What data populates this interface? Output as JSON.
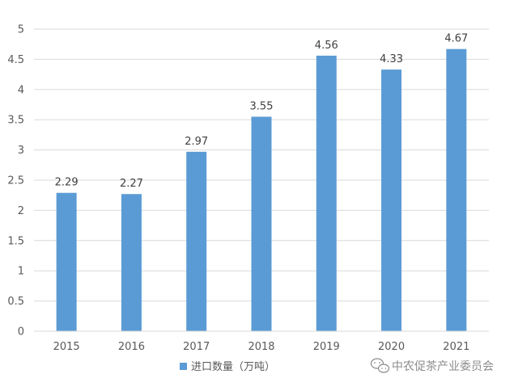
{
  "chart_data": {
    "type": "bar",
    "categories": [
      "2015",
      "2016",
      "2017",
      "2018",
      "2019",
      "2020",
      "2021"
    ],
    "series": [
      {
        "name": "进口数量（万吨）",
        "values": [
          2.29,
          2.27,
          2.97,
          3.55,
          4.56,
          4.33,
          4.67
        ]
      }
    ],
    "data_labels": [
      "2.29",
      "2.27",
      "2.97",
      "3.55",
      "4.56",
      "4.33",
      "4.67"
    ],
    "y_ticks": [
      "0",
      "0.5",
      "1",
      "1.5",
      "2",
      "2.5",
      "3",
      "3.5",
      "4",
      "4.5",
      "5"
    ],
    "ylim": [
      0,
      5
    ],
    "title": "",
    "xlabel": "",
    "ylabel": "",
    "grid": true,
    "legend_position": "bottom-left",
    "bar_color": "#5B9BD5",
    "grid_color": "#D9D9D9"
  },
  "watermark": {
    "text": "中农促茶产业委员会",
    "icon": "wechat-icon"
  }
}
